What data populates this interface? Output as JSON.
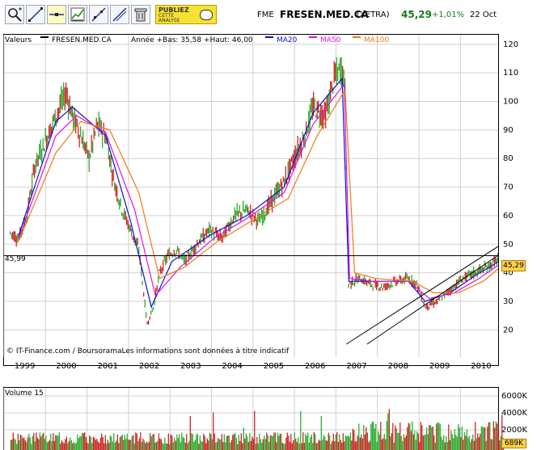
{
  "toolbar": {
    "buttons": [
      {
        "name": "zoom-icon"
      },
      {
        "name": "draw-line-icon"
      },
      {
        "name": "draw-line-2-icon"
      },
      {
        "name": "horizontal-line-icon"
      },
      {
        "name": "indicator-chart-icon"
      },
      {
        "name": "fibonacci-icon"
      },
      {
        "name": "trend-tool-icon"
      },
      {
        "name": "trash-icon"
      }
    ],
    "ad_line1": "PUBLIEZ",
    "ad_line2": "CETTE",
    "ad_line3": "ANALYSE"
  },
  "quote": {
    "symbol": "FME",
    "name": "FRESEN.MED.CA",
    "exchange": "(XETRA)",
    "price": "45,29",
    "change": "+1,01%",
    "date": "22 Oct"
  },
  "legend": {
    "values_label": "Valeurs",
    "series_label": "FRESEN.MED.CA",
    "range_label": "Année +Bas: 35,58 +Haut: 46,00",
    "ma20": "MA20",
    "ma50": "MA50",
    "ma100": "MA100"
  },
  "reference_value": "45,99",
  "last_value": "45,29",
  "copyright": "© IT-Finance.com / BoursoramaLes informations sont données à titre indicatif",
  "volume": {
    "title": "Volume 15",
    "ticks": [
      "6000K",
      "4000K",
      "2000K"
    ],
    "last": "689K"
  },
  "colors": {
    "up": "#1fa51f",
    "down": "#c81414",
    "ma20": "#1010d0",
    "ma50": "#e010e0",
    "ma100": "#f07a14",
    "grid": "#d0d0d0"
  },
  "chart_data": {
    "type": "line",
    "title": "FRESEN.MED.CA",
    "xlabel": "",
    "ylabel": "",
    "x_tick_labels": [
      "1999",
      "2000",
      "2001",
      "2002",
      "2003",
      "2004",
      "2005",
      "2006",
      "2007",
      "2008",
      "2009",
      "2010"
    ],
    "y_tick_labels": [
      120,
      110,
      100,
      90,
      80,
      70,
      60,
      50,
      40,
      30,
      20
    ],
    "ylim": [
      15,
      122
    ],
    "grid": true,
    "legend_position": "top",
    "reference_line": 45.99,
    "series": [
      {
        "name": "FRESEN.MED.CA",
        "x": [
          1998.9,
          1999.1,
          1999.3,
          1999.5,
          1999.8,
          2000.0,
          2000.25,
          2000.4,
          2000.6,
          2000.8,
          2001.0,
          2001.2,
          2001.4,
          2001.6,
          2001.8,
          2002.0,
          2002.2,
          2002.35,
          2002.5,
          2002.7,
          2002.9,
          2003.1,
          2003.4,
          2003.7,
          2004.0,
          2004.3,
          2004.6,
          2004.9,
          2005.2,
          2005.5,
          2005.8,
          2006.0,
          2006.2,
          2006.5,
          2006.7,
          2006.9,
          2006.97,
          2007.05,
          2007.3,
          2007.6,
          2007.9,
          2008.2,
          2008.5,
          2008.7,
          2008.9,
          2009.2,
          2009.5,
          2009.8,
          2010.1,
          2010.4,
          2010.8
        ],
        "y": [
          54,
          52,
          60,
          78,
          88,
          95,
          103,
          95,
          88,
          80,
          92,
          88,
          72,
          62,
          55,
          48,
          22,
          28,
          40,
          46,
          48,
          44,
          50,
          55,
          52,
          60,
          62,
          58,
          65,
          72,
          82,
          88,
          98,
          95,
          108,
          112,
          104,
          36,
          38,
          36,
          35,
          37,
          38,
          36,
          28,
          30,
          34,
          38,
          40,
          42,
          46
        ]
      },
      {
        "name": "MA20",
        "x": [
          1999.1,
          2000.0,
          2000.4,
          2001.2,
          2001.8,
          2002.3,
          2002.8,
          2003.7,
          2004.6,
          2005.5,
          2006.2,
          2006.9,
          2007.06,
          2007.6,
          2008.5,
          2008.9,
          2009.5,
          2010.1,
          2010.8
        ],
        "y": [
          53,
          93,
          98,
          88,
          58,
          28,
          44,
          53,
          60,
          70,
          96,
          108,
          37,
          37,
          37,
          30,
          33,
          39,
          45
        ]
      },
      {
        "name": "MA50",
        "x": [
          1999.1,
          2000.0,
          2000.5,
          2001.2,
          2001.9,
          2002.4,
          2003.0,
          2003.8,
          2004.6,
          2005.5,
          2006.2,
          2006.95,
          2007.08,
          2007.6,
          2008.5,
          2009.0,
          2009.6,
          2010.2,
          2010.8
        ],
        "y": [
          52,
          88,
          95,
          89,
          62,
          32,
          42,
          52,
          59,
          68,
          92,
          106,
          38,
          37,
          37,
          31,
          33,
          38,
          44
        ]
      },
      {
        "name": "MA100",
        "x": [
          1999.1,
          2000.0,
          2000.6,
          2001.3,
          2002.0,
          2002.5,
          2003.1,
          2003.9,
          2004.7,
          2005.6,
          2006.3,
          2006.97,
          2007.2,
          2007.7,
          2008.6,
          2009.1,
          2009.7,
          2010.3,
          2010.8
        ],
        "y": [
          51,
          82,
          93,
          90,
          68,
          38,
          42,
          51,
          58,
          66,
          88,
          104,
          40,
          38,
          37,
          33,
          33,
          37,
          43
        ]
      }
    ],
    "trend_channel": {
      "lower": {
        "x": [
          2007.5,
          2010.85
        ],
        "y": [
          15,
          48
        ]
      },
      "upper": {
        "x": [
          2007.0,
          2010.85
        ],
        "y": [
          15,
          51
        ]
      }
    },
    "volume_bars": {
      "unit": "K",
      "ylim": [
        0,
        7000
      ]
    }
  }
}
